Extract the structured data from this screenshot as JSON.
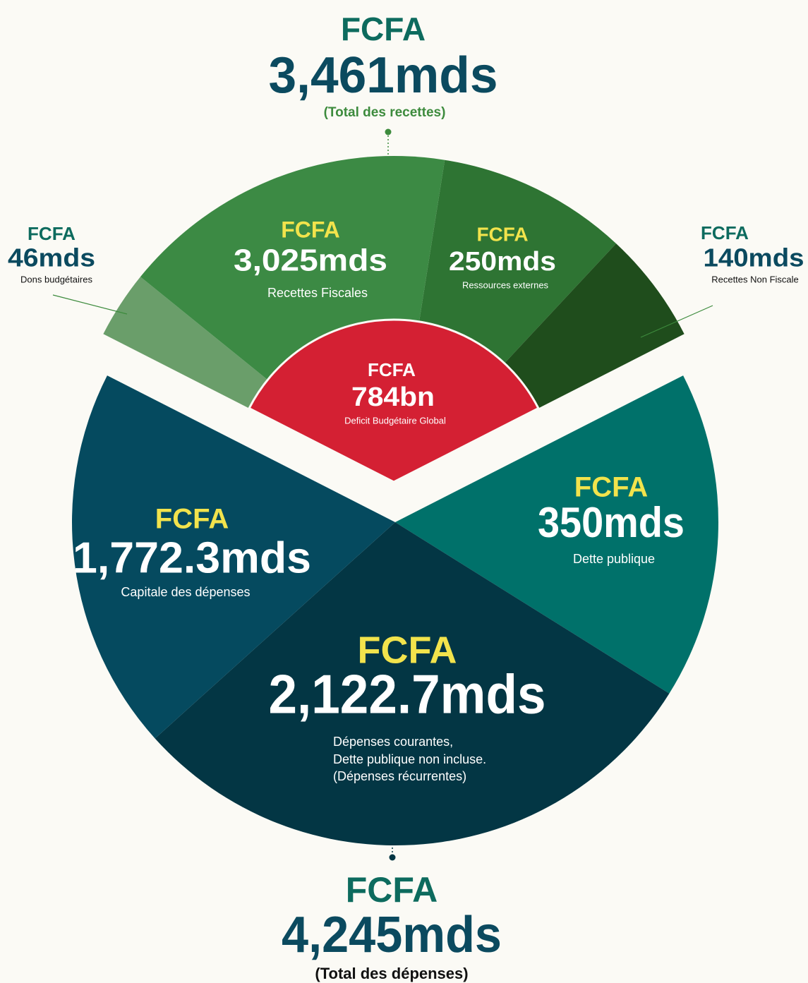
{
  "total_revenue": {
    "currency": "FCFA",
    "amount": "3,461mds",
    "caption": "(Total des recettes)"
  },
  "revenues": [
    {
      "currency": "FCFA",
      "amount": "46mds",
      "label": "Dons budgétaires"
    },
    {
      "currency": "FCFA",
      "amount": "3,025mds",
      "label": "Recettes Fiscales"
    },
    {
      "currency": "FCFA",
      "amount": "250mds",
      "label": "Ressources externes"
    },
    {
      "currency": "FCFA",
      "amount": "140mds",
      "label": "Recettes Non Fiscale"
    }
  ],
  "deficit": {
    "currency": "FCFA",
    "amount": "784bn",
    "label": "Deficit Budgétaire Global"
  },
  "expenditures": [
    {
      "currency": "FCFA",
      "amount": "1,772.3mds",
      "label": "Capitale des dépenses"
    },
    {
      "currency": "FCFA",
      "amount": "350mds",
      "label": "Dette publique"
    },
    {
      "currency": "FCFA",
      "amount": "2,122.7mds",
      "lines": [
        "Dépenses courantes,",
        "Dette publique non incluse.",
        "(Dépenses récurrentes)"
      ]
    }
  ],
  "total_expenditure": {
    "currency": "FCFA",
    "amount": "4,245mds",
    "caption": "(Total des dépenses)"
  }
}
